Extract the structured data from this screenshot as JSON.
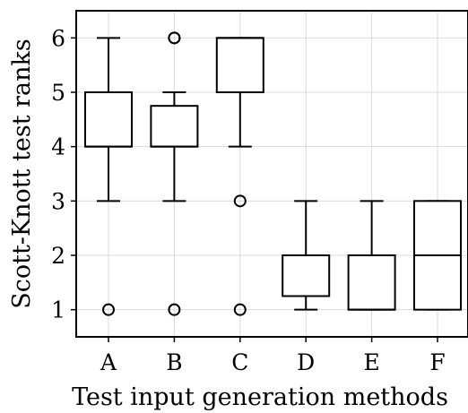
{
  "chart_data": {
    "type": "boxplot",
    "xlabel": "Test input generation methods",
    "ylabel": "Scott-Knott test ranks",
    "ylim": [
      0.5,
      6.5
    ],
    "yticks": [
      1,
      2,
      3,
      4,
      5,
      6
    ],
    "grid": true,
    "categories": [
      "A",
      "B",
      "C",
      "D",
      "E",
      "F"
    ],
    "boxes": [
      {
        "category": "A",
        "whisker_low": 3,
        "q1": 4,
        "median": 4,
        "q3": 5,
        "whisker_high": 6,
        "outliers": [
          1
        ]
      },
      {
        "category": "B",
        "whisker_low": 3,
        "q1": 4,
        "median": 4,
        "q3": 4.75,
        "whisker_high": 5,
        "outliers": [
          1,
          6,
          6
        ]
      },
      {
        "category": "C",
        "whisker_low": 4,
        "q1": 5,
        "median": 6,
        "q3": 6,
        "whisker_high": 6,
        "outliers": [
          1,
          3
        ]
      },
      {
        "category": "D",
        "whisker_low": 1,
        "q1": 1.25,
        "median": 2,
        "q3": 2,
        "whisker_high": 3,
        "outliers": []
      },
      {
        "category": "E",
        "whisker_low": 1,
        "q1": 1,
        "median": 1,
        "q3": 2,
        "whisker_high": 3,
        "outliers": []
      },
      {
        "category": "F",
        "whisker_low": 1,
        "q1": 1,
        "median": 2,
        "q3": 3,
        "whisker_high": 3,
        "outliers": []
      }
    ]
  }
}
